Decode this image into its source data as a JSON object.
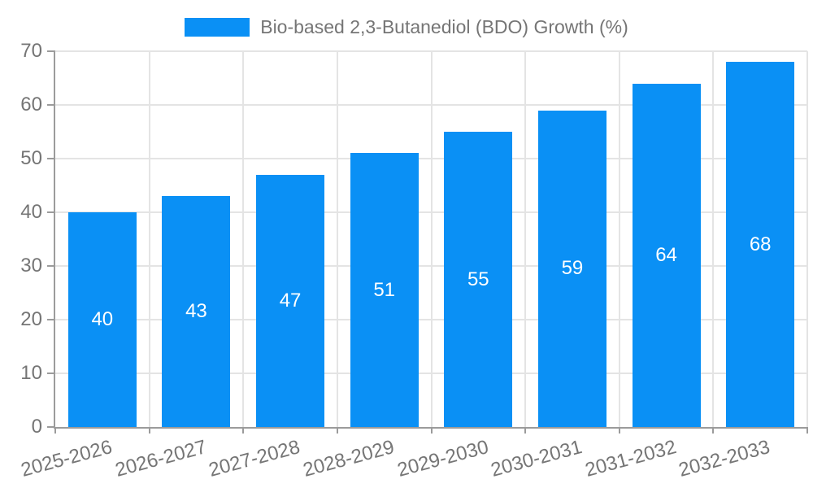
{
  "legend": {
    "label": "Bio-based 2,3-Butanediol (BDO) Growth (%)"
  },
  "chart_data": {
    "type": "bar",
    "title": "Bio-based 2,3-Butanediol (BDO) Growth (%)",
    "categories": [
      "2025-2026",
      "2026-2027",
      "2027-2028",
      "2028-2029",
      "2029-2030",
      "2030-2031",
      "2031-2032",
      "2032-2033"
    ],
    "values": [
      40,
      43,
      47,
      51,
      55,
      59,
      64,
      68
    ],
    "series": [
      {
        "name": "Bio-based 2,3-Butanediol (BDO) Growth (%)",
        "values": [
          40,
          43,
          47,
          51,
          55,
          59,
          64,
          68
        ]
      }
    ],
    "xlabel": "",
    "ylabel": "",
    "ylim": [
      0,
      70
    ],
    "ytick_step": 10,
    "ytick_labels": [
      "0",
      "10",
      "20",
      "30",
      "40",
      "50",
      "60",
      "70"
    ],
    "grid": true,
    "legend_position": "top-center",
    "x_label_rotation_deg": -15,
    "bar_color": "#0a90f5",
    "value_label_color": "#ffffff",
    "grid_color": "#e4e4e4",
    "axis_color": "#9b9b9b",
    "tick_text_color": "#757575"
  }
}
